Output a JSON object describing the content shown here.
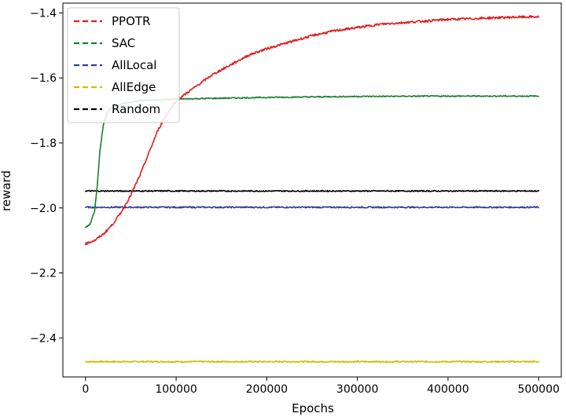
{
  "chart_data": {
    "type": "line",
    "xlabel": "Epochs",
    "ylabel": "reward",
    "xlim": [
      -25000,
      525000
    ],
    "ylim": [
      -2.52,
      -1.37
    ],
    "xticks": [
      0,
      100000,
      200000,
      300000,
      400000,
      500000
    ],
    "xtick_labels": [
      "0",
      "100000",
      "200000",
      "300000",
      "400000",
      "500000"
    ],
    "yticks": [
      -2.4,
      -2.2,
      -2.0,
      -1.8,
      -1.6,
      -1.4
    ],
    "ytick_labels": [
      "−2.4",
      "−2.2",
      "−2.0",
      "−1.8",
      "−1.6",
      "−1.4"
    ],
    "grid": false,
    "legend_position": "top-left",
    "series": [
      {
        "name": "PPOTR",
        "color": "#e31a1c",
        "x": [
          0,
          10000,
          20000,
          30000,
          40000,
          50000,
          60000,
          70000,
          80000,
          90000,
          100000,
          120000,
          140000,
          160000,
          180000,
          200000,
          225000,
          250000,
          275000,
          300000,
          325000,
          350000,
          375000,
          400000,
          425000,
          450000,
          475000,
          500000
        ],
        "y": [
          -2.11,
          -2.1,
          -2.08,
          -2.05,
          -2.01,
          -1.96,
          -1.9,
          -1.83,
          -1.76,
          -1.71,
          -1.67,
          -1.63,
          -1.59,
          -1.56,
          -1.53,
          -1.51,
          -1.49,
          -1.47,
          -1.455,
          -1.445,
          -1.435,
          -1.43,
          -1.425,
          -1.42,
          -1.418,
          -1.415,
          -1.413,
          -1.412
        ]
      },
      {
        "name": "SAC",
        "color": "#1a7f2e",
        "x": [
          0,
          5000,
          10000,
          13000,
          16000,
          20000,
          25000,
          30000,
          40000,
          60000,
          100000,
          200000,
          300000,
          400000,
          500000
        ],
        "y": [
          -2.06,
          -2.05,
          -2.01,
          -1.93,
          -1.82,
          -1.74,
          -1.7,
          -1.69,
          -1.68,
          -1.67,
          -1.665,
          -1.66,
          -1.657,
          -1.656,
          -1.656
        ]
      },
      {
        "name": "AllLocal",
        "color": "#2e3d99",
        "x": [
          0,
          100000,
          200000,
          300000,
          400000,
          500000
        ],
        "y": [
          -1.998,
          -1.998,
          -1.998,
          -1.998,
          -1.998,
          -1.998
        ]
      },
      {
        "name": "AllEdge",
        "color": "#c8c100",
        "x": [
          0,
          100000,
          200000,
          300000,
          400000,
          500000
        ],
        "y": [
          -2.473,
          -2.473,
          -2.473,
          -2.473,
          -2.473,
          -2.473
        ]
      },
      {
        "name": "Random",
        "color": "#000000",
        "x": [
          0,
          100000,
          200000,
          300000,
          400000,
          500000
        ],
        "y": [
          -1.948,
          -1.948,
          -1.948,
          -1.948,
          -1.948,
          -1.948
        ]
      }
    ]
  }
}
